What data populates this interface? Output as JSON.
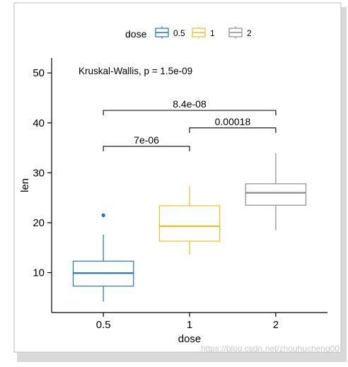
{
  "chart_data": {
    "type": "boxplot",
    "xlabel": "dose",
    "ylabel": "len",
    "categories": [
      "0.5",
      "1",
      "2"
    ],
    "ylim": [
      2,
      53
    ],
    "yticks": [
      10,
      20,
      30,
      40,
      50
    ],
    "legend": {
      "title": "dose",
      "placement": "top",
      "entries": [
        "0.5",
        "1",
        "2"
      ]
    },
    "series": [
      {
        "group": "0.5",
        "color": "#1f78b4",
        "min": 4.2,
        "q1": 7.3,
        "median": 9.9,
        "q3": 12.3,
        "max": 17.6,
        "outliers": [
          21.5
        ]
      },
      {
        "group": "1",
        "color": "#e7c31d",
        "min": 13.6,
        "q1": 16.3,
        "median": 19.3,
        "q3": 23.4,
        "max": 27.3,
        "outliers": []
      },
      {
        "group": "2",
        "color": "#8c8c8c",
        "min": 18.5,
        "q1": 23.5,
        "median": 26.0,
        "q3": 27.8,
        "max": 33.9,
        "outliers": []
      }
    ],
    "annotations": [
      {
        "text": "Kruskal-Wallis, p = 1.5e-09"
      }
    ],
    "comparisons": [
      {
        "from": "0.5",
        "to": "1",
        "label": "7e-06",
        "y": 35.3
      },
      {
        "from": "1",
        "to": "2",
        "label": "0.00018",
        "y": 39.0
      },
      {
        "from": "0.5",
        "to": "2",
        "label": "8.4e-08",
        "y": 42.5
      }
    ],
    "grid": false
  },
  "watermark": "https://blog.csdn.net/zhouhucheng00"
}
